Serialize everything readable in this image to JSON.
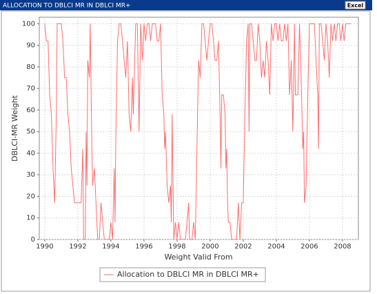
{
  "chart_data": {
    "type": "line",
    "title": "ALLOCATION TO DBLCI MR IN DBLCI MR+",
    "x_label": "Weight Valid From",
    "y_label": "DBLCI-MR Weight",
    "xlim": [
      1989.67,
      2008.96
    ],
    "xticks": [
      1990,
      1992,
      1994,
      1996,
      1998,
      2000,
      2002,
      2004,
      2006,
      2008
    ],
    "ylim": [
      0,
      103
    ],
    "yticks": [
      0,
      10,
      20,
      30,
      40,
      50,
      60,
      70,
      80,
      90,
      100
    ],
    "grid": true,
    "legend": "bottom",
    "x": [
      1990.0,
      1990.1,
      1990.2,
      1990.3,
      1990.4,
      1990.5,
      1990.6,
      1990.7,
      1990.75,
      1990.9,
      1991.0,
      1991.1,
      1991.2,
      1991.3,
      1991.4,
      1991.5,
      1991.6,
      1991.7,
      1991.8,
      1992.0,
      1992.2,
      1992.3,
      1992.35,
      1992.45,
      1992.5,
      1992.55,
      1992.6,
      1992.7,
      1992.75,
      1992.85,
      1992.9,
      1993.0,
      1993.1,
      1993.2,
      1993.3,
      1993.4,
      1993.5,
      1993.6,
      1993.7,
      1993.9,
      1994.0,
      1994.1,
      1994.2,
      1994.25,
      1994.3,
      1994.4,
      1994.5,
      1994.6,
      1994.7,
      1994.8,
      1994.9,
      1995.0,
      1995.1,
      1995.2,
      1995.3,
      1995.35,
      1995.5,
      1995.6,
      1995.7,
      1995.8,
      1995.9,
      1996.0,
      1996.1,
      1996.2,
      1996.3,
      1996.4,
      1996.5,
      1996.7,
      1996.8,
      1996.9,
      1997.0,
      1997.1,
      1997.2,
      1997.25,
      1997.3,
      1997.4,
      1997.5,
      1997.6,
      1997.65,
      1997.7,
      1997.8,
      1997.9,
      1998.0,
      1998.1,
      1998.2,
      1998.3,
      1998.5,
      1998.6,
      1998.7,
      1998.75,
      1998.9,
      1999.0,
      1999.1,
      1999.2,
      1999.3,
      1999.4,
      1999.5,
      1999.6,
      1999.7,
      1999.8,
      1999.9,
      2000.0,
      2000.1,
      2000.2,
      2000.3,
      2000.4,
      2000.5,
      2000.6,
      2000.65,
      2000.7,
      2000.8,
      2000.9,
      2000.95,
      2001.0,
      2001.05,
      2001.1,
      2001.2,
      2001.3,
      2001.5,
      2001.6,
      2001.7,
      2001.8,
      2001.9,
      2002.0,
      2002.1,
      2002.2,
      2002.3,
      2002.35,
      2002.4,
      2002.5,
      2002.6,
      2002.7,
      2002.8,
      2002.9,
      2003.0,
      2003.1,
      2003.2,
      2003.3,
      2003.4,
      2003.5,
      2003.6,
      2003.7,
      2003.8,
      2003.9,
      2004.0,
      2004.1,
      2004.2,
      2004.3,
      2004.4,
      2004.5,
      2004.6,
      2004.7,
      2004.8,
      2004.9,
      2005.0,
      2005.1,
      2005.15,
      2005.3,
      2005.4,
      2005.5,
      2005.6,
      2005.65,
      2005.7,
      2005.8,
      2005.9,
      2006.0,
      2006.1,
      2006.3,
      2006.4,
      2006.5,
      2006.55,
      2006.6,
      2006.7,
      2006.8,
      2006.9,
      2007.0,
      2007.1,
      2007.2,
      2007.3,
      2007.4,
      2007.5,
      2007.6,
      2007.7,
      2007.8,
      2007.9,
      2008.0,
      2008.1,
      2008.2,
      2008.3,
      2008.5
    ],
    "series": [
      {
        "name": "Allocation to DBLCI MR in DBLCI MR+",
        "color": "#ff6b6b",
        "values": [
          100,
          92,
          92,
          67,
          58,
          33,
          17,
          58,
          100,
          100,
          100,
          92,
          75,
          75,
          58,
          50,
          33,
          25,
          17,
          17,
          17,
          42,
          0,
          0,
          50,
          25,
          83,
          75,
          100,
          42,
          25,
          33,
          17,
          0,
          0,
          17,
          8,
          0,
          0,
          0,
          8,
          0,
          33,
          8,
          50,
          92,
          100,
          100,
          92,
          83,
          75,
          92,
          58,
          50,
          75,
          58,
          100,
          100,
          50,
          100,
          83,
          100,
          92,
          100,
          100,
          92,
          100,
          100,
          92,
          92,
          100,
          67,
          58,
          42,
          50,
          25,
          17,
          25,
          8,
          58,
          0,
          8,
          0,
          8,
          0,
          0,
          0,
          8,
          17,
          0,
          0,
          8,
          0,
          42,
          83,
          75,
          100,
          100,
          92,
          83,
          92,
          100,
          100,
          92,
          83,
          83,
          92,
          58,
          33,
          67,
          67,
          58,
          33,
          42,
          17,
          8,
          8,
          0,
          0,
          0,
          17,
          0,
          17,
          17,
          58,
          92,
          100,
          50,
          100,
          100,
          92,
          83,
          83,
          100,
          92,
          75,
          83,
          75,
          92,
          83,
          67,
          100,
          92,
          100,
          100,
          92,
          100,
          92,
          92,
          100,
          92,
          100,
          67,
          83,
          50,
          100,
          67,
          67,
          100,
          75,
          42,
          50,
          17,
          25,
          67,
          100,
          100,
          100,
          83,
          67,
          42,
          100,
          100,
          92,
          83,
          100,
          92,
          75,
          100,
          92,
          100,
          92,
          100,
          100,
          92,
          100,
          92,
          100,
          100,
          100
        ]
      }
    ]
  },
  "toolbar": {
    "button": "Excel"
  }
}
